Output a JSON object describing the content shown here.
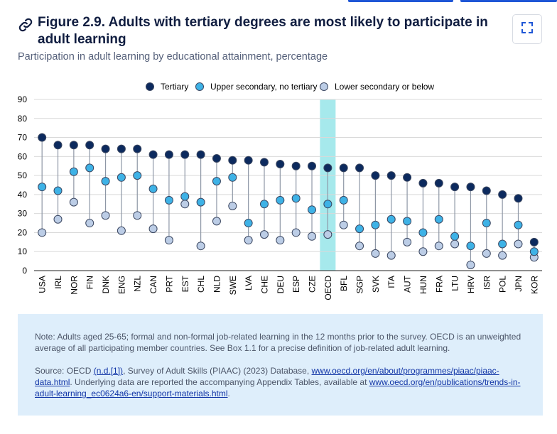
{
  "header": {
    "title": "Figure 2.9. Adults with tertiary degrees are most likely to participate in adult learning",
    "subtitle": "Participation in adult learning by educational attainment, percentage"
  },
  "icons": {
    "link": "link-icon",
    "expand": "expand-icon"
  },
  "colors": {
    "tertiary": "#0c2a5e",
    "upper_secondary": "#3eb2e6",
    "lower_secondary": "#bccde6",
    "highlight": "#a6e9ec",
    "connector": "#8e97a6",
    "grid": "#d9d9d9",
    "note_bg": "#deeefb"
  },
  "chart_data": {
    "type": "scatter",
    "title": "",
    "xlabel": "",
    "ylabel": "",
    "ylim": [
      0,
      90
    ],
    "yticks": [
      0,
      10,
      20,
      30,
      40,
      50,
      60,
      70,
      80,
      90
    ],
    "grid": true,
    "legend_position": "top-center",
    "highlight_category": "OECD",
    "categories": [
      "USA",
      "IRL",
      "NOR",
      "FIN",
      "DNK",
      "ENG",
      "NZL",
      "CAN",
      "PRT",
      "EST",
      "CHL",
      "NLD",
      "SWE",
      "LVA",
      "CHE",
      "DEU",
      "ESP",
      "CZE",
      "OECD",
      "BFL",
      "SGP",
      "SVK",
      "ITA",
      "AUT",
      "HUN",
      "FRA",
      "LTU",
      "HRV",
      "ISR",
      "POL",
      "JPN",
      "KOR"
    ],
    "series": [
      {
        "name": "Tertiary",
        "values": [
          70,
          66,
          66,
          66,
          64,
          64,
          64,
          61,
          61,
          61,
          61,
          59,
          58,
          58,
          57,
          56,
          55,
          55,
          54,
          54,
          54,
          50,
          50,
          49,
          46,
          46,
          44,
          44,
          42,
          40,
          38,
          15
        ]
      },
      {
        "name": "Upper secondary, no tertiary",
        "values": [
          44,
          42,
          52,
          54,
          47,
          49,
          50,
          43,
          37,
          39,
          36,
          47,
          49,
          25,
          35,
          37,
          38,
          32,
          35,
          37,
          22,
          24,
          27,
          26,
          20,
          27,
          18,
          13,
          25,
          14,
          24,
          10
        ]
      },
      {
        "name": "Lower secondary or below",
        "values": [
          20,
          27,
          36,
          25,
          29,
          21,
          29,
          22,
          16,
          35,
          13,
          26,
          34,
          16,
          19,
          16,
          20,
          18,
          19,
          24,
          13,
          9,
          8,
          15,
          10,
          13,
          14,
          3,
          9,
          8,
          14,
          7
        ]
      }
    ]
  },
  "note": {
    "note_text": "Note: Adults aged 25-65; formal and non-formal job-related learning in the 12 months prior to the survey. OECD is an unweighted average of all participating member countries. See Box 1.1 for a precise definition of job-related adult learning.",
    "source_prefix": "Source: OECD ",
    "source_ref": "(n.d.[1])",
    "source_mid": ", Survey of Adult Skills (PIAAC) (2023) Database, ",
    "source_link1": "www.oecd.org/en/about/programmes/piaac/piaac-data.html",
    "source_after": ". Underlying data are reported the accompanying Appendix Tables, available at ",
    "source_link2": "www.oecd.org/en/publications/trends-in-adult-learning_ec0624a6-en/support-materials.html",
    "source_end": "."
  }
}
